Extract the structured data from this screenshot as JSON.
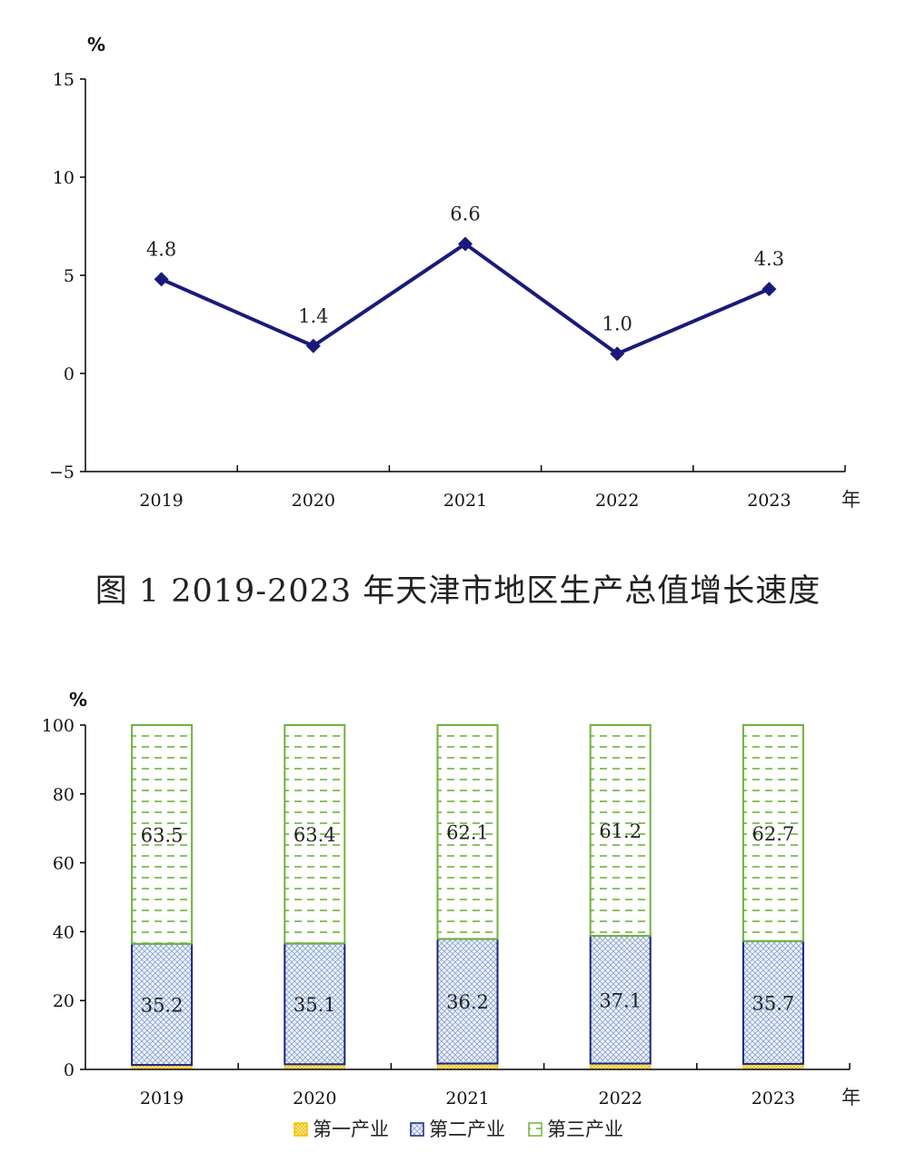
{
  "chart_data": [
    {
      "type": "line",
      "title": "图 1 2019-2023 年天津市地区生产总值增长速度",
      "ylabel": "%",
      "xlabel": "年",
      "categories": [
        "2019",
        "2020",
        "2021",
        "2022",
        "2023"
      ],
      "values": [
        4.8,
        1.4,
        6.6,
        1.0,
        4.3
      ],
      "data_labels": [
        "4.8",
        "1.4",
        "6.6",
        "1.0",
        "4.3"
      ],
      "ylim": [
        -5,
        15
      ],
      "yticks": [
        15,
        10,
        5,
        0,
        -5
      ],
      "ytick_labels": [
        "15",
        "10",
        "5",
        "0",
        "−5"
      ],
      "grid": false,
      "color": "#1a1a7a"
    },
    {
      "type": "bar",
      "stacked": true,
      "ylabel": "%",
      "xlabel": "年",
      "categories": [
        "2019",
        "2020",
        "2021",
        "2022",
        "2023"
      ],
      "ylim": [
        0,
        100
      ],
      "yticks": [
        100,
        80,
        60,
        40,
        20,
        0
      ],
      "ytick_labels": [
        "100",
        "80",
        "60",
        "40",
        "20",
        "0"
      ],
      "grid": false,
      "legend": "bottom",
      "series": [
        {
          "name": "第一产业",
          "values": [
            1.3,
            1.5,
            1.7,
            1.7,
            1.6
          ],
          "labels": [
            "",
            "",
            "",
            "",
            ""
          ],
          "color": "#f2c100"
        },
        {
          "name": "第二产业",
          "values": [
            35.2,
            35.1,
            36.2,
            37.1,
            35.7
          ],
          "labels": [
            "35.2",
            "35.1",
            "36.2",
            "37.1",
            "35.7"
          ],
          "color": "#1a237e"
        },
        {
          "name": "第三产业",
          "values": [
            63.5,
            63.4,
            62.1,
            61.2,
            62.7
          ],
          "labels": [
            "63.5",
            "63.4",
            "62.1",
            "61.2",
            "62.7"
          ],
          "color": "#6fb33b"
        }
      ]
    }
  ]
}
